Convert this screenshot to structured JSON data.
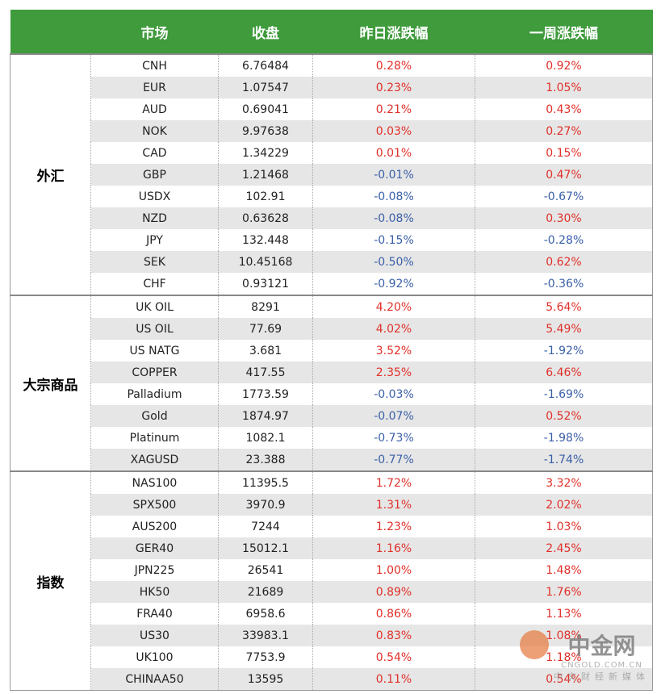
{
  "table": {
    "header": [
      "市场",
      "收盘",
      "昨日涨跌幅",
      "一周涨跌幅"
    ],
    "groups": [
      {
        "name": "外汇",
        "rows": [
          [
            "CNH",
            "6.76484",
            "0.28%",
            "0.92%"
          ],
          [
            "EUR",
            "1.07547",
            "0.23%",
            "1.05%"
          ],
          [
            "AUD",
            "0.69041",
            "0.21%",
            "0.43%"
          ],
          [
            "NOK",
            "9.97638",
            "0.03%",
            "0.27%"
          ],
          [
            "CAD",
            "1.34229",
            "0.01%",
            "0.15%"
          ],
          [
            "GBP",
            "1.21468",
            "-0.01%",
            "0.47%"
          ],
          [
            "USDX",
            "102.91",
            "-0.08%",
            "-0.67%"
          ],
          [
            "NZD",
            "0.63628",
            "-0.08%",
            "0.30%"
          ],
          [
            "JPY",
            "132.448",
            "-0.15%",
            "-0.28%"
          ],
          [
            "SEK",
            "10.45168",
            "-0.50%",
            "0.62%"
          ],
          [
            "CHF",
            "0.93121",
            "-0.92%",
            "-0.36%"
          ]
        ]
      },
      {
        "name": "大宗商品",
        "rows": [
          [
            "UK OIL",
            "8291",
            "4.20%",
            "5.64%"
          ],
          [
            "US OIL",
            "77.69",
            "4.02%",
            "5.49%"
          ],
          [
            "US NATG",
            "3.681",
            "3.52%",
            "-1.92%"
          ],
          [
            "COPPER",
            "417.55",
            "2.35%",
            "6.46%"
          ],
          [
            "Palladium",
            "1773.59",
            "-0.03%",
            "-1.69%"
          ],
          [
            "Gold",
            "1874.97",
            "-0.07%",
            "0.52%"
          ],
          [
            "Platinum",
            "1082.1",
            "-0.73%",
            "-1.98%"
          ],
          [
            "XAGUSD",
            "23.388",
            "-0.77%",
            "-1.74%"
          ]
        ]
      },
      {
        "name": "指数",
        "rows": [
          [
            "NAS100",
            "11395.5",
            "1.72%",
            "3.32%"
          ],
          [
            "SPX500",
            "3970.9",
            "1.31%",
            "2.02%"
          ],
          [
            "AUS200",
            "7244",
            "1.23%",
            "1.03%"
          ],
          [
            "GER40",
            "15012.1",
            "1.16%",
            "2.45%"
          ],
          [
            "JPN225",
            "26541",
            "1.00%",
            "1.48%"
          ],
          [
            "HK50",
            "21689",
            "0.89%",
            "1.76%"
          ],
          [
            "FRA40",
            "6958.6",
            "0.86%",
            "1.13%"
          ],
          [
            "US30",
            "33983.1",
            "0.83%",
            "1.08%"
          ],
          [
            "UK100",
            "7753.9",
            "0.54%",
            "1.18%"
          ],
          [
            "CHINAA50",
            "13595",
            "0.11%",
            "0.54%"
          ]
        ]
      }
    ]
  },
  "watermark": {
    "logo": "中金网",
    "url": "CNGOLD.COM.CN",
    "slogan": "中文财经新媒体"
  }
}
